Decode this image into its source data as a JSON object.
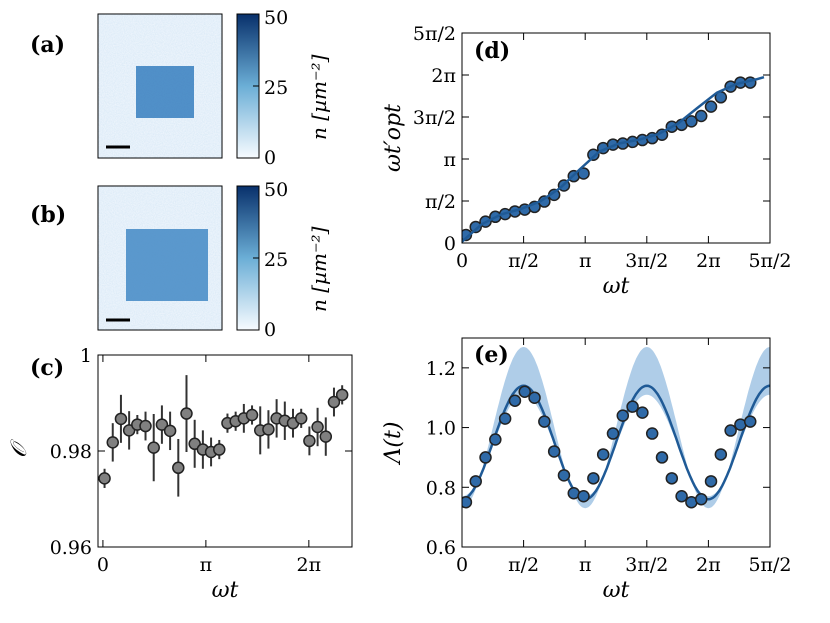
{
  "panels": {
    "a": {
      "label": "(a)"
    },
    "b": {
      "label": "(b)"
    },
    "c": {
      "label": "(c)"
    },
    "d": {
      "label": "(d)"
    },
    "e": {
      "label": "(e)"
    }
  },
  "colorbar": {
    "ticks": [
      "50",
      "25",
      "0"
    ],
    "label": "n [µm⁻²]",
    "colors": [
      "#f7fbff",
      "#6baed6",
      "#08306b"
    ]
  },
  "chart_data": [
    {
      "id": "c",
      "type": "scatter",
      "title": "",
      "xlabel": "ωt",
      "ylabel": "𝒪",
      "xlim": [
        -0.15,
        7.6
      ],
      "ylim": [
        0.96,
        1.0
      ],
      "xticks": [
        {
          "v": 0,
          "label": "0"
        },
        {
          "v": 3.14159,
          "label": "π"
        },
        {
          "v": 6.28319,
          "label": "2π"
        }
      ],
      "yticks": [
        {
          "v": 0.96,
          "label": "0.96"
        },
        {
          "v": 0.98,
          "label": "0.98"
        },
        {
          "v": 1.0,
          "label": "1"
        }
      ],
      "series": [
        {
          "name": "overlap",
          "color": "#808080",
          "x": [
            0.05,
            0.3,
            0.55,
            0.8,
            1.05,
            1.3,
            1.55,
            1.8,
            2.05,
            2.3,
            2.55,
            2.8,
            3.05,
            3.3,
            3.55,
            3.8,
            4.05,
            4.3,
            4.55,
            4.8,
            5.05,
            5.3,
            5.55,
            5.8,
            6.05,
            6.3,
            6.55,
            6.8,
            7.05,
            7.3
          ],
          "y": [
            0.9743,
            0.9818,
            0.9867,
            0.9843,
            0.9855,
            0.9852,
            0.9807,
            0.9855,
            0.9842,
            0.9765,
            0.9878,
            0.9815,
            0.9803,
            0.9798,
            0.9803,
            0.9858,
            0.9862,
            0.9868,
            0.9875,
            0.9843,
            0.9845,
            0.9868,
            0.9863,
            0.9858,
            0.9868,
            0.9821,
            0.985,
            0.983,
            0.9902,
            0.9917
          ],
          "err": [
            0.002,
            0.004,
            0.005,
            0.004,
            0.002,
            0.003,
            0.007,
            0.004,
            0.004,
            0.006,
            0.008,
            0.005,
            0.004,
            0.003,
            0.002,
            0.002,
            0.002,
            0.003,
            0.002,
            0.005,
            0.004,
            0.004,
            0.004,
            0.003,
            0.002,
            0.003,
            0.004,
            0.004,
            0.003,
            0.002
          ]
        }
      ]
    },
    {
      "id": "d",
      "type": "scatter",
      "title": "",
      "xlabel": "ωt",
      "ylabel": "ωt′opt",
      "xlim": [
        0,
        7.85398
      ],
      "ylim": [
        0,
        7.85398
      ],
      "xticks": [
        {
          "v": 0,
          "label": "0"
        },
        {
          "v": 1.5708,
          "label": "π/2"
        },
        {
          "v": 3.14159,
          "label": "π"
        },
        {
          "v": 4.71239,
          "label": "3π/2"
        },
        {
          "v": 6.28319,
          "label": "2π"
        },
        {
          "v": 7.85398,
          "label": "5π/2"
        }
      ],
      "yticks": [
        {
          "v": 0,
          "label": "0"
        },
        {
          "v": 1.5708,
          "label": "π/2"
        },
        {
          "v": 3.14159,
          "label": "π"
        },
        {
          "v": 4.71239,
          "label": "3π/2"
        },
        {
          "v": 6.28319,
          "label": "2π"
        },
        {
          "v": 7.85398,
          "label": "5π/2"
        }
      ],
      "series": [
        {
          "name": "data",
          "color": "#2f6aa8",
          "x": [
            0.1,
            0.35,
            0.6,
            0.85,
            1.1,
            1.35,
            1.6,
            1.85,
            2.1,
            2.35,
            2.6,
            2.85,
            3.1,
            3.35,
            3.6,
            3.85,
            4.1,
            4.35,
            4.6,
            4.85,
            5.1,
            5.35,
            5.6,
            5.85,
            6.1,
            6.35,
            6.6,
            6.85,
            7.1,
            7.35
          ],
          "y": [
            0.3,
            0.6,
            0.8,
            0.98,
            1.08,
            1.18,
            1.25,
            1.35,
            1.55,
            1.8,
            2.15,
            2.5,
            2.6,
            3.3,
            3.55,
            3.68,
            3.72,
            3.78,
            3.85,
            3.92,
            4.05,
            4.35,
            4.42,
            4.55,
            4.75,
            5.1,
            5.45,
            5.85,
            6.0,
            6.0
          ]
        },
        {
          "name": "fit",
          "color": "#1f5a96",
          "x": [
            0,
            0.5,
            1.0,
            1.5,
            2.0,
            2.5,
            3.0,
            3.5,
            4.0,
            4.5,
            5.0,
            5.5,
            6.0,
            6.5,
            7.0,
            7.5,
            7.7
          ],
          "y": [
            0.05,
            0.7,
            1.07,
            1.27,
            1.56,
            2.05,
            2.75,
            3.42,
            3.72,
            3.86,
            4.07,
            4.46,
            5.05,
            5.62,
            5.95,
            6.12,
            6.2
          ]
        }
      ]
    },
    {
      "id": "e",
      "type": "line",
      "title": "",
      "xlabel": "ωt",
      "ylabel": "Λ(t)",
      "xlim": [
        0,
        7.85398
      ],
      "ylim": [
        0.6,
        1.3
      ],
      "xticks": [
        {
          "v": 0,
          "label": "0"
        },
        {
          "v": 1.5708,
          "label": "π/2"
        },
        {
          "v": 3.14159,
          "label": "π"
        },
        {
          "v": 4.71239,
          "label": "3π/2"
        },
        {
          "v": 6.28319,
          "label": "2π"
        },
        {
          "v": 7.85398,
          "label": "5π/2"
        }
      ],
      "yticks": [
        {
          "v": 0.6,
          "label": "0.6"
        },
        {
          "v": 0.8,
          "label": "0.8"
        },
        {
          "v": 1.0,
          "label": "1.0"
        },
        {
          "v": 1.2,
          "label": "1.2"
        }
      ],
      "model": {
        "mean": 0.95,
        "amp": 0.19,
        "band_amp": 0.27,
        "center": 0.97,
        "band_lo_offset": -0.01
      },
      "series": [
        {
          "name": "data",
          "color": "#2f6aa8",
          "x": [
            0.1,
            0.35,
            0.6,
            0.85,
            1.1,
            1.35,
            1.6,
            1.85,
            2.1,
            2.35,
            2.6,
            2.85,
            3.1,
            3.35,
            3.6,
            3.85,
            4.1,
            4.35,
            4.6,
            4.85,
            5.1,
            5.35,
            5.6,
            5.85,
            6.1,
            6.35,
            6.6,
            6.85,
            7.1,
            7.35
          ],
          "y": [
            0.75,
            0.82,
            0.9,
            0.96,
            1.03,
            1.09,
            1.12,
            1.1,
            1.02,
            0.92,
            0.84,
            0.78,
            0.77,
            0.83,
            0.91,
            0.98,
            1.04,
            1.07,
            1.05,
            0.98,
            0.9,
            0.83,
            0.77,
            0.75,
            0.76,
            0.82,
            0.91,
            0.99,
            1.01,
            1.02
          ]
        },
        {
          "name": "fit",
          "color": "#1f5a96"
        },
        {
          "name": "uncertainty band",
          "color": "#a6c8e6"
        }
      ]
    }
  ]
}
